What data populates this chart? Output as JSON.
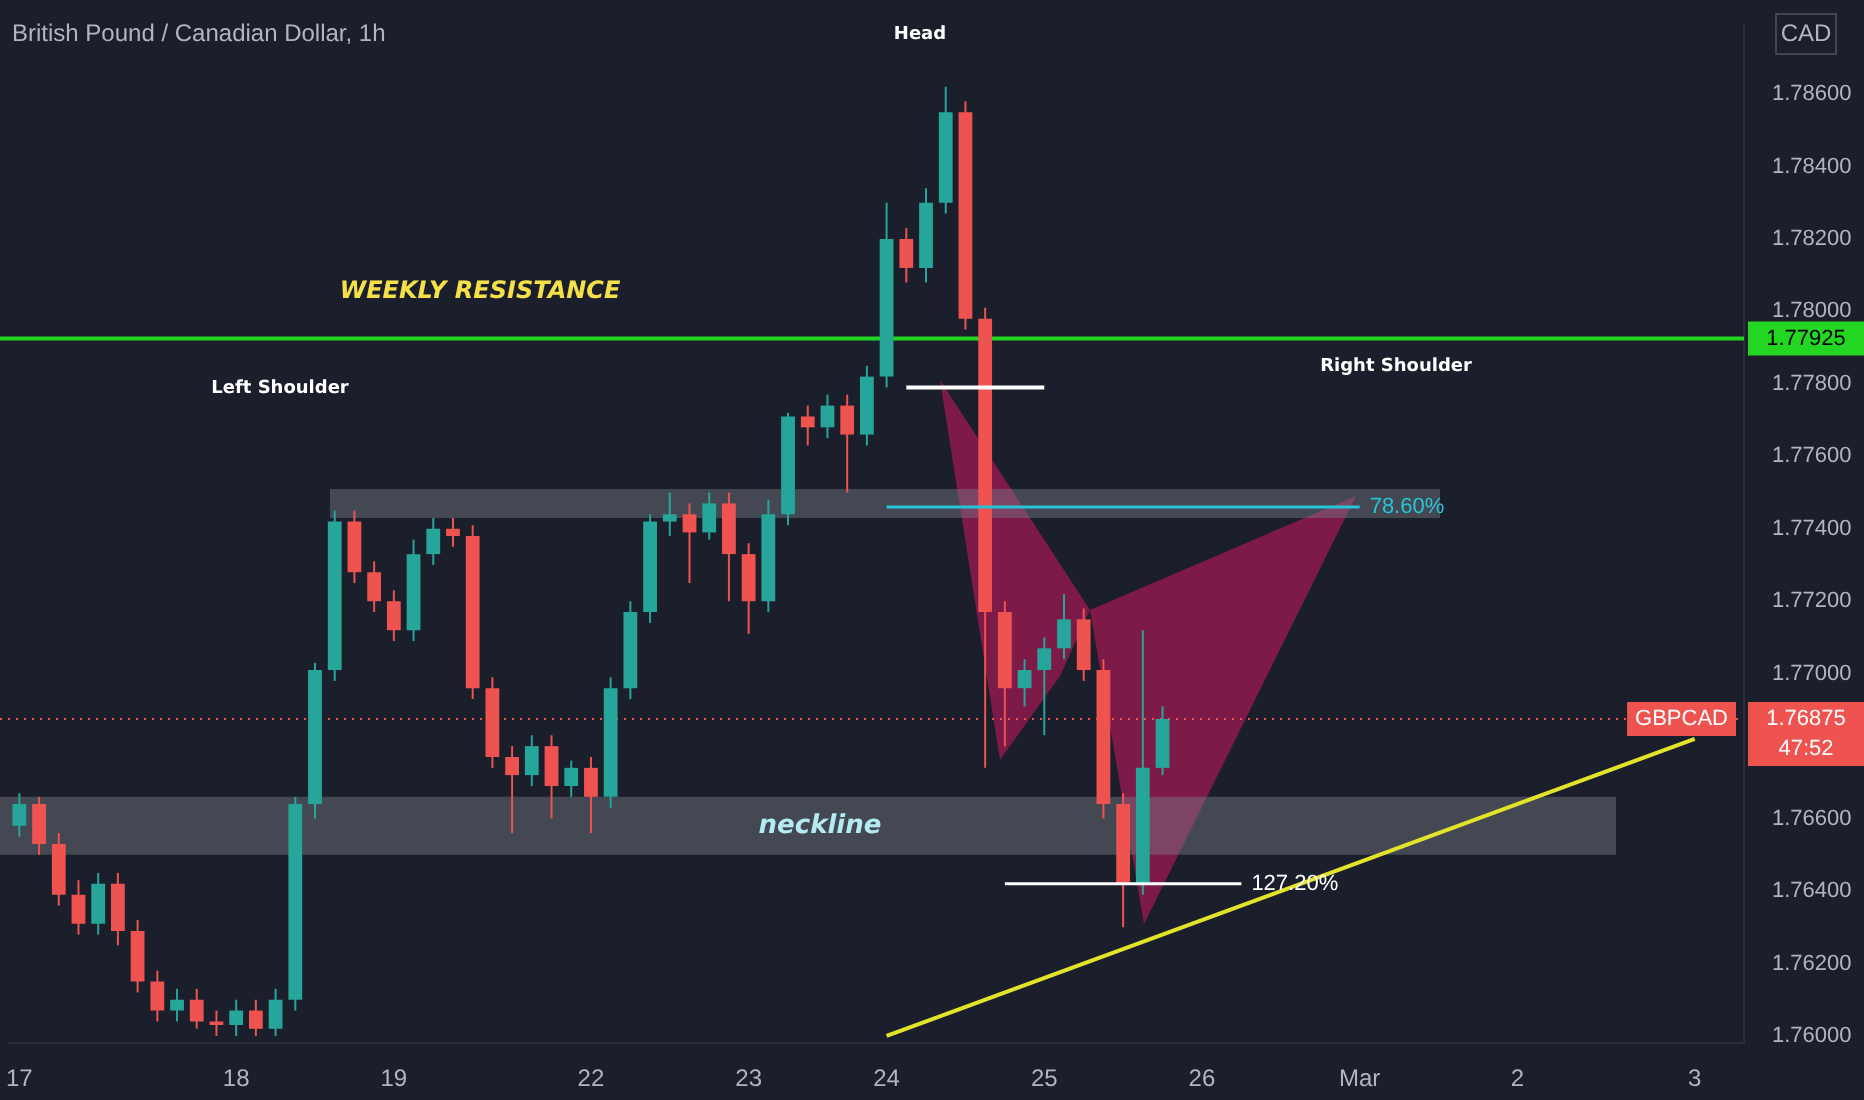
{
  "chart_data": {
    "type": "candlestick",
    "title": "British Pound / Canadian Dollar, 1h",
    "ylabel": "CAD",
    "categories": [
      "17",
      null,
      null,
      null,
      null,
      null,
      null,
      null,
      null,
      null,
      null,
      "18",
      null,
      null,
      null,
      null,
      null,
      null,
      null,
      "19",
      null,
      null,
      null,
      null,
      null,
      null,
      null,
      null,
      null,
      "22",
      null,
      null,
      null,
      null,
      null,
      null,
      null,
      "23",
      null,
      null,
      null,
      null,
      null,
      null,
      "24",
      null,
      null,
      null,
      null,
      null,
      null,
      null,
      "25",
      null,
      null,
      null,
      null,
      null,
      null,
      null,
      "26",
      null,
      null,
      null,
      null,
      null,
      null,
      null,
      "Mar",
      null,
      null,
      null,
      null,
      null,
      null,
      null,
      "2",
      null,
      null,
      null,
      null,
      null,
      null,
      null,
      null,
      "3",
      null,
      null
    ],
    "ohlc": [
      [
        1.7658,
        1.7667,
        1.7655,
        1.7664
      ],
      [
        1.7664,
        1.7666,
        1.765,
        1.7653
      ],
      [
        1.7653,
        1.7656,
        1.7636,
        1.7639
      ],
      [
        1.7639,
        1.7643,
        1.7628,
        1.7631
      ],
      [
        1.7631,
        1.7645,
        1.7628,
        1.7642
      ],
      [
        1.7642,
        1.7645,
        1.7625,
        1.7629
      ],
      [
        1.7629,
        1.7632,
        1.7612,
        1.7615
      ],
      [
        1.7615,
        1.7618,
        1.7604,
        1.7607
      ],
      [
        1.7607,
        1.7613,
        1.7604,
        1.761
      ],
      [
        1.761,
        1.7613,
        1.7602,
        1.7604
      ],
      [
        1.7604,
        1.7607,
        1.76,
        1.7603
      ],
      [
        1.7603,
        1.761,
        1.76,
        1.7607
      ],
      [
        1.7607,
        1.761,
        1.76,
        1.7602
      ],
      [
        1.7602,
        1.7613,
        1.76,
        1.761
      ],
      [
        1.761,
        1.7666,
        1.7607,
        1.7664
      ],
      [
        1.7664,
        1.7703,
        1.766,
        1.7701
      ],
      [
        1.7701,
        1.7745,
        1.7698,
        1.7742
      ],
      [
        1.7742,
        1.7745,
        1.7725,
        1.7728
      ],
      [
        1.7728,
        1.7731,
        1.7717,
        1.772
      ],
      [
        1.772,
        1.7723,
        1.7709,
        1.7712
      ],
      [
        1.7712,
        1.7737,
        1.7709,
        1.7733
      ],
      [
        1.7733,
        1.7743,
        1.773,
        1.774
      ],
      [
        1.774,
        1.7743,
        1.7735,
        1.7738
      ],
      [
        1.7738,
        1.7741,
        1.7693,
        1.7696
      ],
      [
        1.7696,
        1.7699,
        1.7674,
        1.7677
      ],
      [
        1.7677,
        1.768,
        1.7656,
        1.7672
      ],
      [
        1.7672,
        1.7683,
        1.7669,
        1.768
      ],
      [
        1.768,
        1.7683,
        1.766,
        1.7669
      ],
      [
        1.7669,
        1.7676,
        1.7666,
        1.7674
      ],
      [
        1.7674,
        1.7677,
        1.7656,
        1.7666
      ],
      [
        1.7666,
        1.7699,
        1.7663,
        1.7696
      ],
      [
        1.7696,
        1.772,
        1.7693,
        1.7717
      ],
      [
        1.7717,
        1.7744,
        1.7714,
        1.7742
      ],
      [
        1.7742,
        1.775,
        1.7738,
        1.7744
      ],
      [
        1.7744,
        1.7747,
        1.7725,
        1.7739
      ],
      [
        1.7739,
        1.775,
        1.7737,
        1.7747
      ],
      [
        1.7747,
        1.775,
        1.772,
        1.7733
      ],
      [
        1.7733,
        1.7736,
        1.7711,
        1.772
      ],
      [
        1.772,
        1.7748,
        1.7717,
        1.7744
      ],
      [
        1.7744,
        1.7772,
        1.7741,
        1.7771
      ],
      [
        1.7771,
        1.7774,
        1.7763,
        1.7768
      ],
      [
        1.7768,
        1.7777,
        1.7765,
        1.7774
      ],
      [
        1.7774,
        1.7777,
        1.775,
        1.7766
      ],
      [
        1.7766,
        1.7785,
        1.7763,
        1.7782
      ],
      [
        1.7782,
        1.783,
        1.7779,
        1.782
      ],
      [
        1.782,
        1.7823,
        1.7808,
        1.7812
      ],
      [
        1.7812,
        1.7834,
        1.7808,
        1.783
      ],
      [
        1.783,
        1.7862,
        1.7827,
        1.7855
      ],
      [
        1.7855,
        1.7858,
        1.7795,
        1.7798
      ],
      [
        1.7798,
        1.7801,
        1.7674,
        1.7717
      ],
      [
        1.7717,
        1.772,
        1.768,
        1.7696
      ],
      [
        1.7696,
        1.7704,
        1.7691,
        1.7701
      ],
      [
        1.7701,
        1.771,
        1.7683,
        1.7707
      ],
      [
        1.7707,
        1.7722,
        1.7704,
        1.7715
      ],
      [
        1.7715,
        1.7718,
        1.7698,
        1.7701
      ],
      [
        1.7701,
        1.7704,
        1.766,
        1.7664
      ],
      [
        1.7664,
        1.7667,
        1.763,
        1.7642
      ],
      [
        1.7642,
        1.7712,
        1.7639,
        1.7674
      ],
      [
        1.7674,
        1.7691,
        1.7672,
        1.76875
      ],
      null,
      null,
      null,
      null,
      null,
      null,
      null,
      null,
      null,
      null,
      null,
      null,
      null,
      null,
      null,
      null,
      null,
      null,
      null,
      null,
      null,
      null,
      null,
      null,
      null,
      null,
      null,
      null,
      null
    ],
    "series": [
      {
        "type": "line",
        "color": "#e3e32a",
        "values": [
          null,
          null,
          null,
          null,
          null,
          null,
          null,
          null,
          null,
          null,
          null,
          null,
          null,
          null,
          null,
          null,
          null,
          null,
          null,
          null,
          null,
          null,
          null,
          null,
          null,
          null,
          null,
          null,
          null,
          null,
          null,
          null,
          null,
          null,
          null,
          null,
          null,
          null,
          null,
          null,
          null,
          null,
          null,
          null,
          1.76,
          null,
          null,
          null,
          null,
          null,
          null,
          null,
          null,
          null,
          null,
          null,
          null,
          null,
          null,
          null,
          null,
          null,
          null,
          null,
          null,
          null,
          null,
          null,
          null,
          null,
          null,
          null,
          null,
          null,
          null,
          null,
          null,
          null,
          null,
          null,
          null,
          null,
          null,
          null,
          null,
          1.7682,
          null,
          null
        ]
      },
      {
        "type": "line",
        "name": "78.60%",
        "color": "#26c6da",
        "values": [
          null,
          null,
          null,
          null,
          null,
          null,
          null,
          null,
          null,
          null,
          null,
          null,
          null,
          null,
          null,
          null,
          null,
          null,
          null,
          null,
          null,
          null,
          null,
          null,
          null,
          null,
          null,
          null,
          null,
          null,
          null,
          null,
          null,
          null,
          null,
          null,
          null,
          null,
          null,
          null,
          null,
          null,
          null,
          null,
          1.7746,
          null,
          null,
          null,
          null,
          null,
          null,
          null,
          null,
          null,
          null,
          null,
          null,
          null,
          null,
          null,
          null,
          null,
          null,
          null,
          null,
          null,
          null,
          null,
          1.7746,
          null,
          null,
          null,
          null,
          null,
          null,
          null,
          null,
          null,
          null,
          null,
          null,
          null,
          null,
          null,
          null,
          null,
          null,
          null
        ]
      },
      {
        "type": "line",
        "name": "127.20%",
        "color": "#ffffff",
        "values": [
          null,
          null,
          null,
          null,
          null,
          null,
          null,
          null,
          null,
          null,
          null,
          null,
          null,
          null,
          null,
          null,
          null,
          null,
          null,
          null,
          null,
          null,
          null,
          null,
          null,
          null,
          null,
          null,
          null,
          null,
          null,
          null,
          null,
          null,
          null,
          null,
          null,
          null,
          null,
          null,
          null,
          null,
          null,
          null,
          null,
          null,
          null,
          null,
          null,
          null,
          1.7642,
          null,
          null,
          null,
          null,
          null,
          null,
          null,
          null,
          null,
          null,
          null,
          1.7642,
          null,
          null,
          null,
          null,
          null,
          null,
          null,
          null,
          null,
          null,
          null,
          null,
          null,
          null,
          null,
          null,
          null,
          null,
          null,
          null,
          null,
          null,
          null,
          null,
          null
        ]
      },
      {
        "type": "line",
        "color": "#ffffff",
        "values": [
          null,
          null,
          null,
          null,
          null,
          null,
          null,
          null,
          null,
          null,
          null,
          null,
          null,
          null,
          null,
          null,
          null,
          null,
          null,
          null,
          null,
          null,
          null,
          null,
          null,
          null,
          null,
          null,
          null,
          null,
          null,
          null,
          null,
          null,
          null,
          null,
          null,
          null,
          null,
          null,
          null,
          null,
          null,
          null,
          null,
          1.7779,
          null,
          null,
          null,
          null,
          null,
          null,
          1.7779,
          null,
          null,
          null,
          null,
          null,
          null,
          null,
          null,
          null,
          null,
          null,
          null,
          null,
          null,
          null,
          null,
          null,
          null,
          null,
          null,
          null,
          null,
          null,
          null,
          null,
          null,
          null,
          null,
          null,
          null,
          null,
          null,
          null,
          null,
          null
        ]
      }
    ],
    "ylim": [
      1.7598,
      1.7879
    ],
    "yticks": [
      {
        "value": 1.76,
        "label": "1.76000"
      },
      {
        "value": 1.762,
        "label": "1.76200"
      },
      {
        "value": 1.764,
        "label": "1.76400"
      },
      {
        "value": 1.766,
        "label": "1.76600"
      },
      {
        "value": 1.77,
        "label": "1.77000"
      },
      {
        "value": 1.772,
        "label": "1.77200"
      },
      {
        "value": 1.774,
        "label": "1.77400"
      },
      {
        "value": 1.776,
        "label": "1.77600"
      },
      {
        "value": 1.778,
        "label": "1.77800"
      },
      {
        "value": 1.78,
        "label": "1.78000"
      },
      {
        "value": 1.782,
        "label": "1.78200"
      },
      {
        "value": 1.784,
        "label": "1.78400"
      },
      {
        "value": 1.786,
        "label": "1.78600"
      }
    ],
    "ref_lines": [
      {
        "axis": "y",
        "value": 1.77925,
        "label": "1.77925",
        "color": "#22d622"
      },
      {
        "axis": "y",
        "value": 1.76875,
        "label": "1.76875",
        "color": "#ef5350",
        "line_style": "dotted"
      }
    ],
    "bands": [
      {
        "axis": "y",
        "from": 1.765,
        "to": 1.7666,
        "label": "neckline",
        "color": "#787b86"
      },
      {
        "axis": "y",
        "from": 1.7743,
        "to": 1.7751,
        "color": "#787b86"
      }
    ],
    "annotations": [
      "WEEKLY RESISTANCE",
      "Left Shoulder",
      "Head",
      "Right Shoulder",
      "GBPCAD",
      "47:52"
    ],
    "legend": false,
    "grid": false
  }
}
